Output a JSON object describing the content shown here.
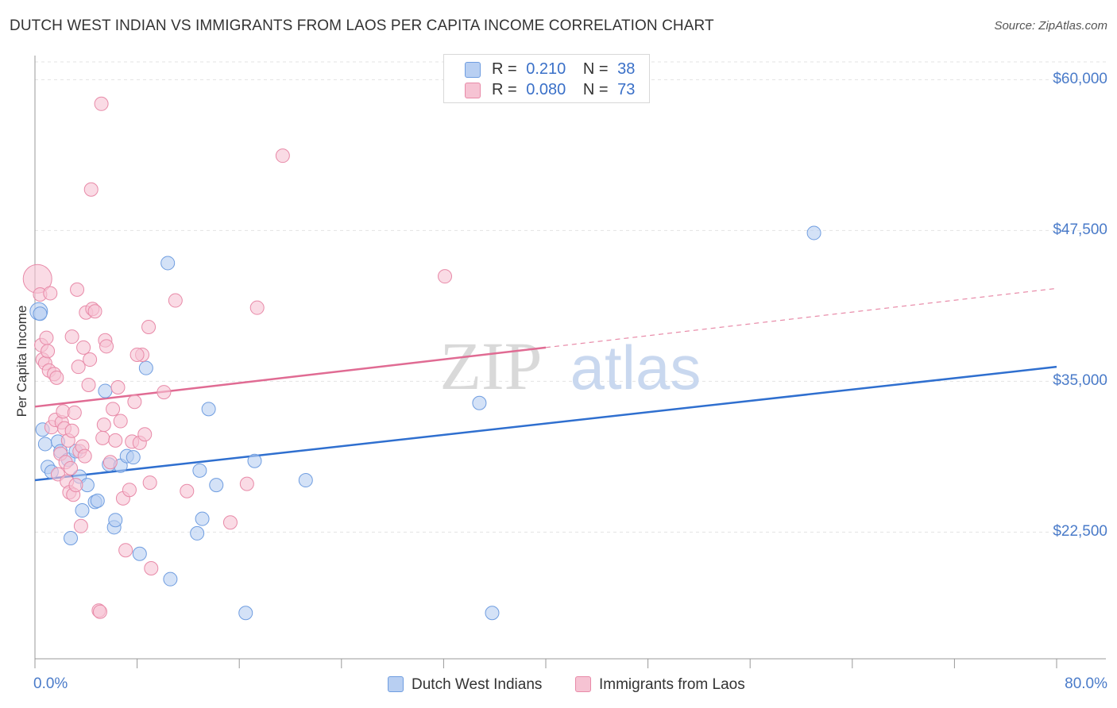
{
  "chart_data": {
    "type": "scatter",
    "title": "DUTCH WEST INDIAN VS IMMIGRANTS FROM LAOS PER CAPITA INCOME CORRELATION CHART",
    "source": "Source: ZipAtlas.com",
    "xlabel": "",
    "ylabel": "Per Capita Income",
    "xlim": [
      0,
      80
    ],
    "ylim": [
      12000,
      62000
    ],
    "x_tick_labels": [
      "0.0%",
      "80.0%"
    ],
    "y_ticks": [
      22500,
      35000,
      47500,
      60000
    ],
    "y_tick_labels": [
      "$22,500",
      "$35,000",
      "$47,500",
      "$60,000"
    ],
    "watermark": "ZIPatlas",
    "legend": {
      "rows": [
        {
          "r_label": "R =",
          "r_value": "0.210",
          "n_label": "N =",
          "n_value": "38"
        },
        {
          "r_label": "R =",
          "r_value": "0.080",
          "n_label": "N =",
          "n_value": "73"
        }
      ]
    },
    "series": [
      {
        "name": "Dutch West Indians",
        "color": "#6f9de0",
        "fill": "#b8cff2",
        "trend": {
          "x0": 0,
          "y0": 26800,
          "x1": 80,
          "y1": 36200,
          "solid_to": 80
        },
        "points": [
          [
            0.3,
            40800
          ],
          [
            0.6,
            31000
          ],
          [
            0.8,
            29800
          ],
          [
            1.0,
            27900
          ],
          [
            1.3,
            27500
          ],
          [
            1.8,
            30000
          ],
          [
            2.0,
            29200
          ],
          [
            2.6,
            28500
          ],
          [
            2.8,
            22000
          ],
          [
            3.2,
            29200
          ],
          [
            3.5,
            27100
          ],
          [
            3.7,
            24300
          ],
          [
            4.1,
            26400
          ],
          [
            4.7,
            25000
          ],
          [
            4.9,
            25100
          ],
          [
            5.5,
            34200
          ],
          [
            5.8,
            28100
          ],
          [
            6.2,
            22900
          ],
          [
            6.3,
            23500
          ],
          [
            6.7,
            28000
          ],
          [
            7.2,
            28800
          ],
          [
            7.7,
            28700
          ],
          [
            8.2,
            20700
          ],
          [
            8.7,
            36100
          ],
          [
            10.4,
            44800
          ],
          [
            10.6,
            18600
          ],
          [
            12.7,
            22400
          ],
          [
            12.9,
            27600
          ],
          [
            13.1,
            23600
          ],
          [
            13.6,
            32700
          ],
          [
            14.2,
            26400
          ],
          [
            16.5,
            15800
          ],
          [
            17.2,
            28400
          ],
          [
            21.2,
            26800
          ],
          [
            34.8,
            33200
          ],
          [
            35.8,
            15800
          ],
          [
            61.0,
            47300
          ],
          [
            0.4,
            40600
          ]
        ]
      },
      {
        "name": "Immigrants from Laos",
        "color": "#e88aa8",
        "fill": "#f6c3d3",
        "trend": {
          "x0": 0,
          "y0": 32900,
          "x1": 80,
          "y1": 42700,
          "solid_to": 40
        },
        "points": [
          [
            0.2,
            43500
          ],
          [
            0.4,
            42200
          ],
          [
            0.5,
            38000
          ],
          [
            0.6,
            36800
          ],
          [
            0.8,
            36500
          ],
          [
            0.9,
            38600
          ],
          [
            1.0,
            37500
          ],
          [
            1.1,
            35900
          ],
          [
            1.3,
            31200
          ],
          [
            1.5,
            35600
          ],
          [
            1.6,
            31800
          ],
          [
            1.7,
            35300
          ],
          [
            1.8,
            27300
          ],
          [
            2.0,
            29000
          ],
          [
            2.1,
            31600
          ],
          [
            2.2,
            32500
          ],
          [
            2.3,
            31100
          ],
          [
            2.4,
            28300
          ],
          [
            2.5,
            26700
          ],
          [
            2.6,
            30100
          ],
          [
            2.7,
            25800
          ],
          [
            2.8,
            27800
          ],
          [
            2.9,
            38700
          ],
          [
            3.0,
            25600
          ],
          [
            3.1,
            32400
          ],
          [
            3.2,
            26400
          ],
          [
            3.3,
            42600
          ],
          [
            3.4,
            36200
          ],
          [
            3.5,
            29200
          ],
          [
            3.6,
            23000
          ],
          [
            3.7,
            29600
          ],
          [
            3.8,
            37800
          ],
          [
            4.0,
            40700
          ],
          [
            4.2,
            34700
          ],
          [
            4.3,
            36800
          ],
          [
            4.5,
            41000
          ],
          [
            4.7,
            40800
          ],
          [
            5.0,
            16000
          ],
          [
            5.1,
            15900
          ],
          [
            5.3,
            30300
          ],
          [
            5.4,
            31400
          ],
          [
            5.5,
            38400
          ],
          [
            5.6,
            37900
          ],
          [
            5.9,
            28300
          ],
          [
            6.1,
            32700
          ],
          [
            6.3,
            30100
          ],
          [
            6.5,
            34500
          ],
          [
            6.7,
            31700
          ],
          [
            6.9,
            25300
          ],
          [
            7.1,
            21000
          ],
          [
            7.4,
            26000
          ],
          [
            7.6,
            30000
          ],
          [
            7.8,
            33300
          ],
          [
            8.2,
            29900
          ],
          [
            8.4,
            37200
          ],
          [
            8.6,
            30600
          ],
          [
            8.9,
            39500
          ],
          [
            9.0,
            26600
          ],
          [
            9.1,
            19500
          ],
          [
            10.1,
            34100
          ],
          [
            11.0,
            41700
          ],
          [
            11.9,
            25900
          ],
          [
            15.3,
            23300
          ],
          [
            16.6,
            26500
          ],
          [
            17.4,
            41100
          ],
          [
            19.4,
            53700
          ],
          [
            32.1,
            43700
          ],
          [
            5.2,
            58000
          ],
          [
            4.4,
            50900
          ],
          [
            1.2,
            42300
          ],
          [
            2.9,
            30900
          ],
          [
            3.9,
            28800
          ],
          [
            8.0,
            37200
          ]
        ]
      }
    ]
  }
}
